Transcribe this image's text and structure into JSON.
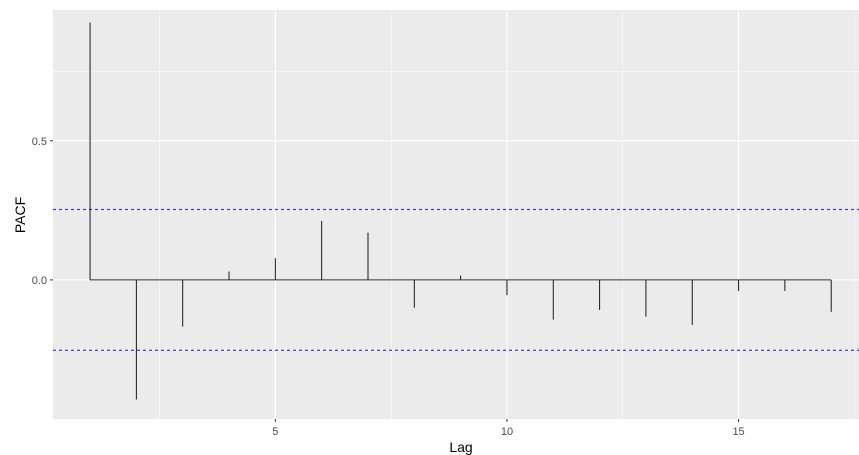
{
  "chart_data": {
    "type": "bar",
    "subtype": "pacf-lollipop",
    "xlabel": "Lag",
    "ylabel": "PACF",
    "x_ticks": [
      5,
      10,
      15
    ],
    "y_ticks": [
      0.0,
      0.5
    ],
    "y_tick_labels": [
      "0.0",
      "0.5"
    ],
    "x_tick_labels": [
      "5",
      "10",
      "15"
    ],
    "xlim": [
      0.2,
      17.6
    ],
    "ylim": [
      -0.5,
      0.97
    ],
    "grid": true,
    "confidence_band": [
      -0.253,
      0.253
    ],
    "colors": {
      "panel_bg": "#ebebeb",
      "grid_major": "#ffffff",
      "spike": "#1a1a1a",
      "baseline": "#333333",
      "band": "#3333ff",
      "tick_text": "#4d4d4d"
    },
    "lags": [
      1,
      2,
      3,
      4,
      5,
      6,
      7,
      8,
      9,
      10,
      11,
      12,
      13,
      14,
      15,
      16,
      17
    ],
    "values": [
      0.925,
      -0.43,
      -0.168,
      0.03,
      0.078,
      0.212,
      0.17,
      -0.1,
      0.016,
      -0.055,
      -0.143,
      -0.108,
      -0.132,
      -0.162,
      -0.04,
      -0.04,
      -0.115
    ]
  }
}
